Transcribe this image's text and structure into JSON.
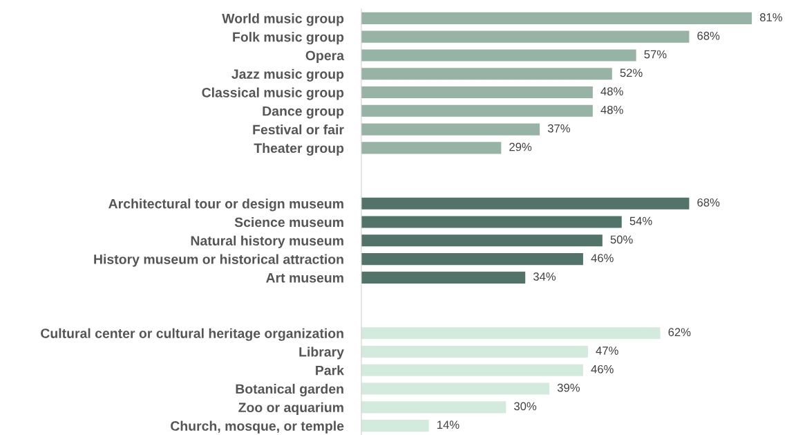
{
  "chart_data": {
    "type": "bar",
    "orientation": "horizontal",
    "categories": [
      "World music group",
      "Folk music group",
      "Opera",
      "Jazz music group",
      "Classical music group",
      "Dance group",
      "Festival or fair",
      "Theater group",
      null,
      null,
      "Architectural tour or design museum",
      "Science museum",
      "Natural history museum",
      "History museum or historical attraction",
      "Art museum",
      null,
      null,
      "Cultural center or cultural heritage organization",
      "Library",
      "Park",
      "Botanical garden",
      "Zoo or aquarium",
      "Church, mosque, or temple"
    ],
    "values": [
      81,
      68,
      57,
      52,
      48,
      48,
      37,
      29,
      null,
      null,
      68,
      54,
      50,
      46,
      34,
      null,
      null,
      62,
      47,
      46,
      39,
      30,
      14
    ],
    "value_labels": [
      "81%",
      "68%",
      "57%",
      "52%",
      "48%",
      "48%",
      "37%",
      "29%",
      null,
      null,
      "68%",
      "54%",
      "50%",
      "46%",
      "34%",
      null,
      null,
      "62%",
      "47%",
      "46%",
      "39%",
      "30%",
      "14%"
    ],
    "colors": [
      "#97b3a5",
      "#97b3a5",
      "#97b3a5",
      "#97b3a5",
      "#97b3a5",
      "#97b3a5",
      "#97b3a5",
      "#97b3a5",
      null,
      null,
      "#527369",
      "#527369",
      "#527369",
      "#527369",
      "#527369",
      null,
      null,
      "#d3ebdd",
      "#d3ebdd",
      "#d3ebdd",
      "#d3ebdd",
      "#d3ebdd",
      "#d3ebdd"
    ],
    "tick_labels": "y",
    "grid": false
  }
}
